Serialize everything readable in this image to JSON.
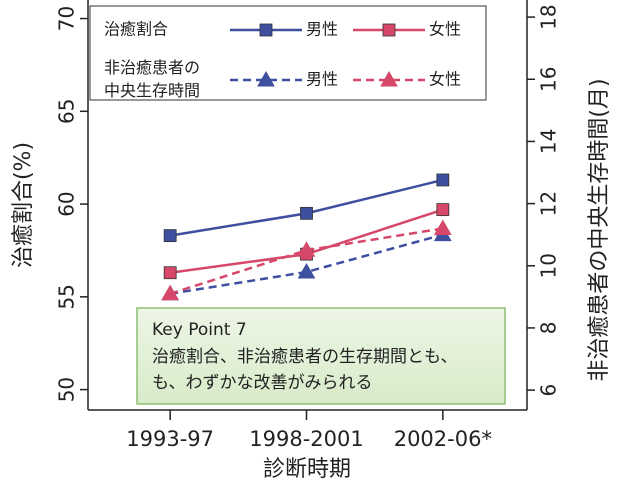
{
  "chart_data": {
    "type": "line",
    "x_label": "診断時期",
    "y_label": "治癒割合(%)",
    "y2_label": "非治癒患者の中央生存時間(月)",
    "categories": [
      "1993-97",
      "1998-2001",
      "2002-06*"
    ],
    "ylim": [
      48.9,
      71
    ],
    "yticks": [
      50,
      55,
      60,
      65,
      70
    ],
    "y2lim": [
      5.36,
      18.55
    ],
    "y2ticks": [
      6,
      8,
      10,
      12,
      14,
      16,
      18
    ],
    "legend_groups": [
      [
        "治癒割合"
      ],
      [
        "非治癒患者の",
        "中央生存時間"
      ]
    ],
    "series": [
      {
        "name": "男性",
        "color": "#3e4fa0",
        "marker": "square",
        "dash": false,
        "values": [
          58.3,
          59.5,
          61.3
        ]
      },
      {
        "name": "女性",
        "color": "#d6476a",
        "marker": "square",
        "dash": false,
        "values": [
          56.3,
          57.3,
          59.7
        ]
      },
      {
        "name": "男性",
        "color": "#3e4fa0",
        "marker": "triangle",
        "dash": true,
        "axis": "y2",
        "values": [
          9.1,
          9.8,
          11.0
        ]
      },
      {
        "name": "女性",
        "color": "#d6476a",
        "marker": "triangle",
        "dash": true,
        "axis": "y2",
        "values": [
          9.1,
          10.5,
          11.2
        ]
      }
    ],
    "annotation": {
      "title": "Key Point 7",
      "lines": [
        "治癒割合、非治癒患者の生存期間とも、",
        "も、わずかな改善がみられる"
      ]
    }
  }
}
